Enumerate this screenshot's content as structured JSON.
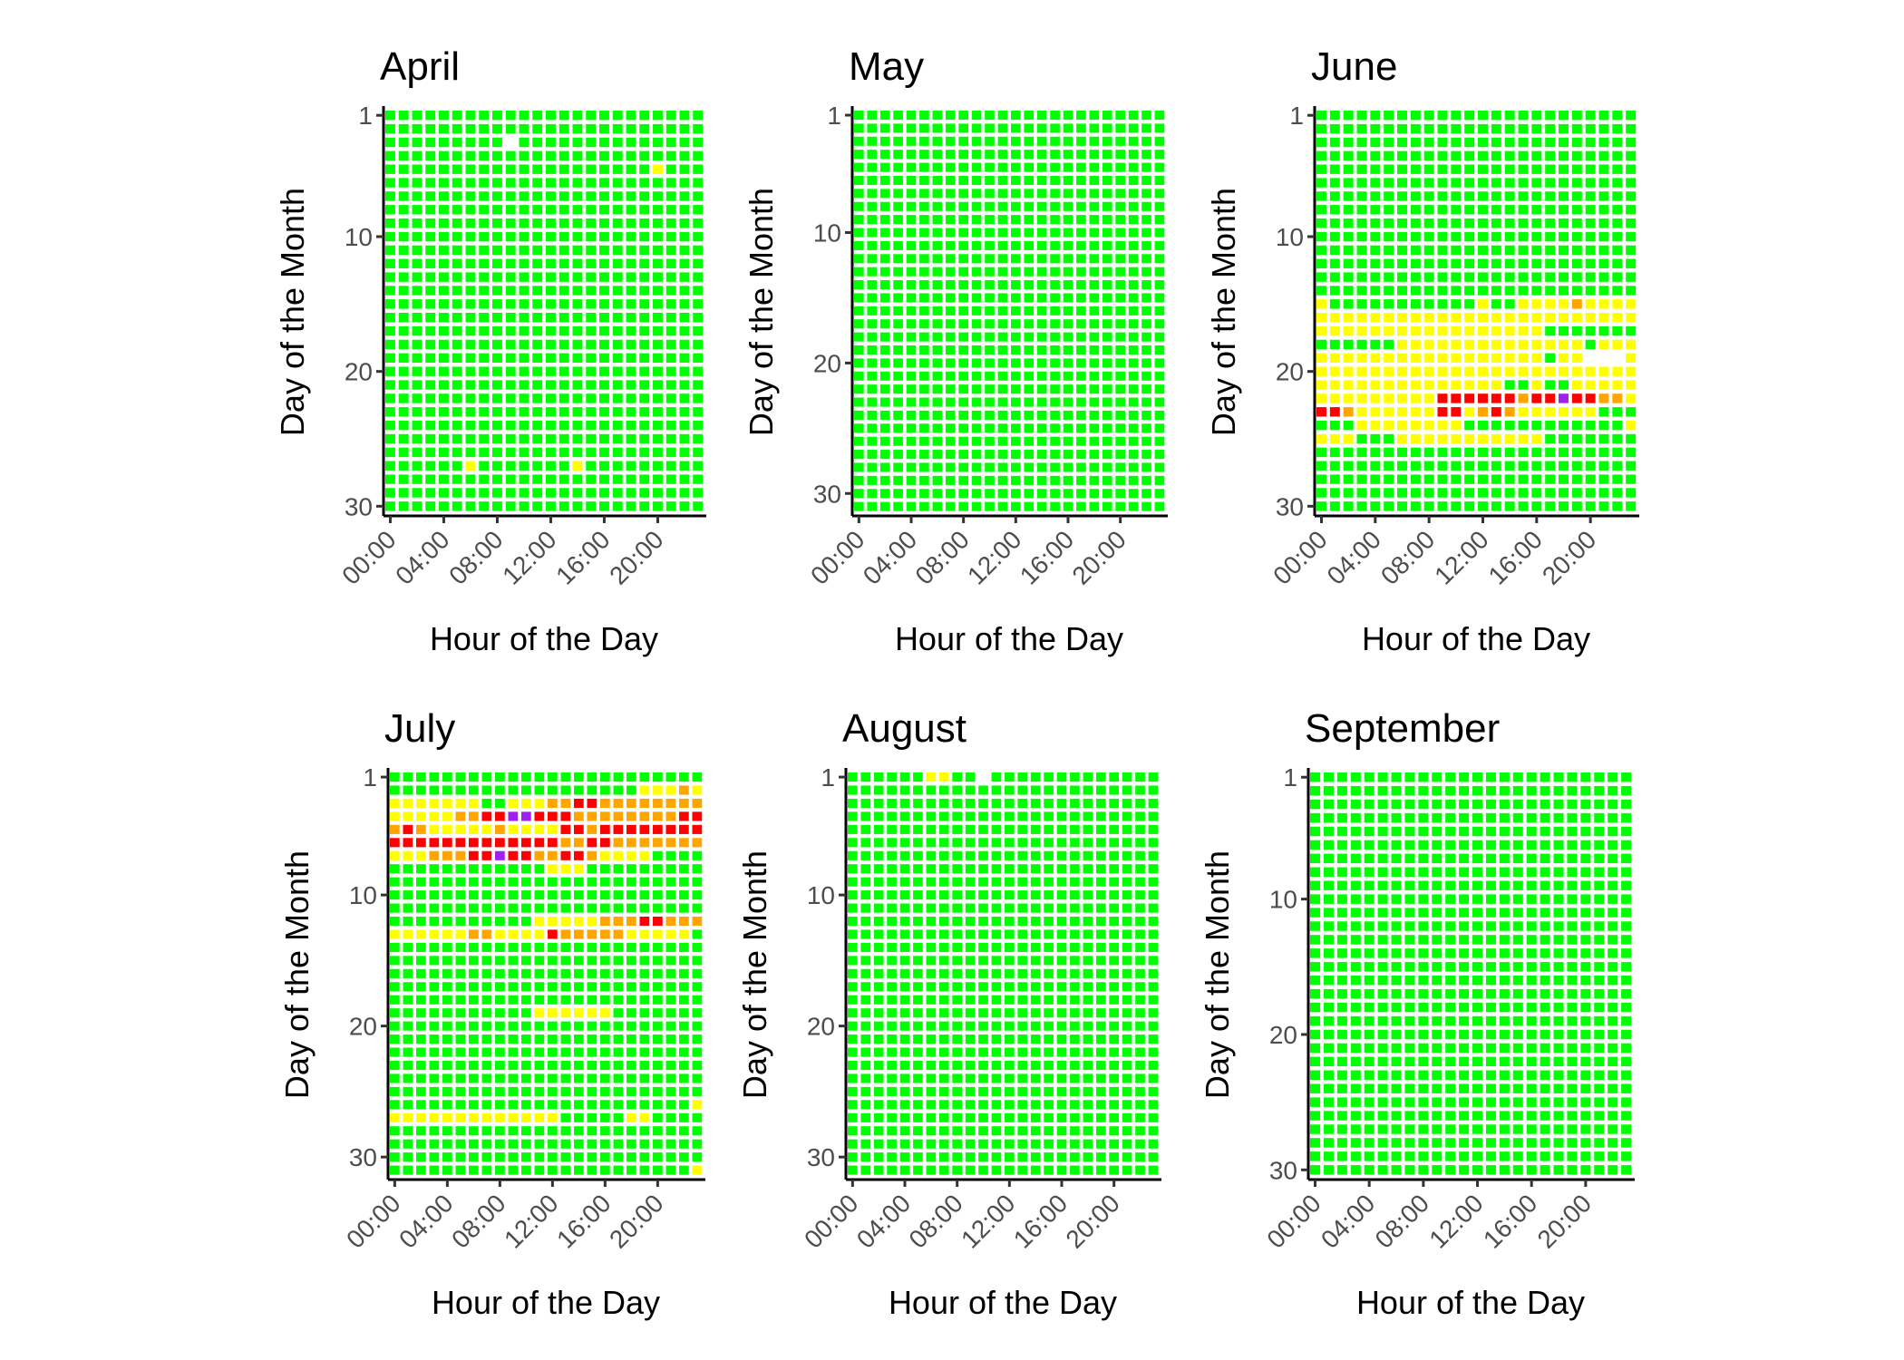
{
  "chart_data": {
    "type": "heatmap",
    "color_legend": {
      "G": "#00FF00",
      "Y": "#FFFF00",
      "O": "#FFA500",
      "R": "#FF0000",
      "P": "#A020F0",
      ".": "missing"
    },
    "xlabel": "Hour of the Day",
    "ylabel": "Day of the Month",
    "x_ticks": [
      "00:00",
      "04:00",
      "08:00",
      "12:00",
      "16:00",
      "20:00"
    ],
    "y_ticks": [
      1,
      10,
      20,
      30
    ],
    "hours": 24,
    "panels": [
      {
        "title": "April",
        "days": 30,
        "cells": {
          "3": "GGGGGGGGG.GGGGGGGGGGGGGG",
          "5": "GGGGGGGGGGGGGGGGGGGGYGGG",
          "27": "GGGGGGYGGGGGGGYGGGGGGGGG"
        }
      },
      {
        "title": "May",
        "days": 31,
        "cells": {}
      },
      {
        "title": "June",
        "days": 30,
        "cells": {
          "15": "YGGGGGGGGGGGYGGYYYYOYYYY",
          "16": "YYYYYYYYYYYYYYYYYYYYYYYY",
          "17": "YYYYYYYYYYYYYYYYYGGGGGGG",
          "18": "GGGGGGYYYYYYYYYYYYYYGYYY",
          "19": "YYYYYYYYYYYYYYYYYGYY...Y",
          "20": "YYYYYYYYYYYYYYYYYYYYYYYY",
          "21": "YYYYYYYYYYYYYYGGYGGYYYYY",
          "22": "YYYYYYYYYRRRRRRORRPRROOY",
          "23": "RROYYYYYYRRYOROYYYYYYGGG",
          "24": "GGGYYYYYYYYGGGGGGGGGGGGY",
          "25": "YYYGGGYYYYYYYYYYYGGGGGGG"
        }
      },
      {
        "title": "July",
        "days": 31,
        "cells": {
          "2": "GGGGGGGGGGGGGGGGGGGYYYOY",
          "3": "YYYYYYYGGYYYOORROOOOOOOO",
          "4": "YYYYYOORRPPRRROOOOOOOORR",
          "5": "OROYYYYYOYYYYRRORRRRRRRR",
          "6": "RRRRRRRRRRRRROORROOOOOOO",
          "7": "YYYOOORRPRROORROYYYYGGGG",
          "8": "GGGGGGGGGGGGYYYGGGGGGGGG",
          "12": "GGGGGGGGGGGYYYYYOOORROOO",
          "13": "YYYYYYOOYYYYROOOOOYYYYYG",
          "19": "GGGGGGGGGGGYYYYYYGGGGGGG",
          "26": "GGGGGGGGGGGGGGGGGGGGGGGY",
          "27": "YYYYYYYYYYYYYGGGGGYYGGGG",
          "31": "GGGGGGGGGGGGGGGGGGGGGGGY"
        }
      },
      {
        "title": "August",
        "days": 31,
        "cells": {
          "1": "GGGGGGYYGG.GGGGGGGGGGGGG"
        }
      },
      {
        "title": "September",
        "days": 30,
        "cells": {}
      }
    ]
  }
}
